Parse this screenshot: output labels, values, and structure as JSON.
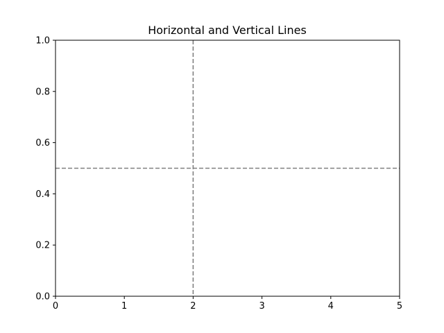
{
  "chart_data": {
    "type": "line",
    "title": "Horizontal and Vertical Lines",
    "xlabel": "",
    "ylabel": "",
    "xlim": [
      0,
      5
    ],
    "ylim": [
      0,
      1
    ],
    "x_ticks": [
      0,
      1,
      2,
      3,
      4,
      5
    ],
    "x_tick_labels": [
      "0",
      "1",
      "2",
      "3",
      "4",
      "5"
    ],
    "y_ticks": [
      0.0,
      0.2,
      0.4,
      0.6,
      0.8,
      1.0
    ],
    "y_tick_labels": [
      "0.0",
      "0.2",
      "0.4",
      "0.6",
      "0.8",
      "1.0"
    ],
    "grid": false,
    "reference_lines": [
      {
        "orientation": "horizontal",
        "value": 0.5,
        "style": "dashed",
        "color": "#808080"
      },
      {
        "orientation": "vertical",
        "value": 2,
        "style": "dashed",
        "color": "#808080"
      }
    ]
  }
}
